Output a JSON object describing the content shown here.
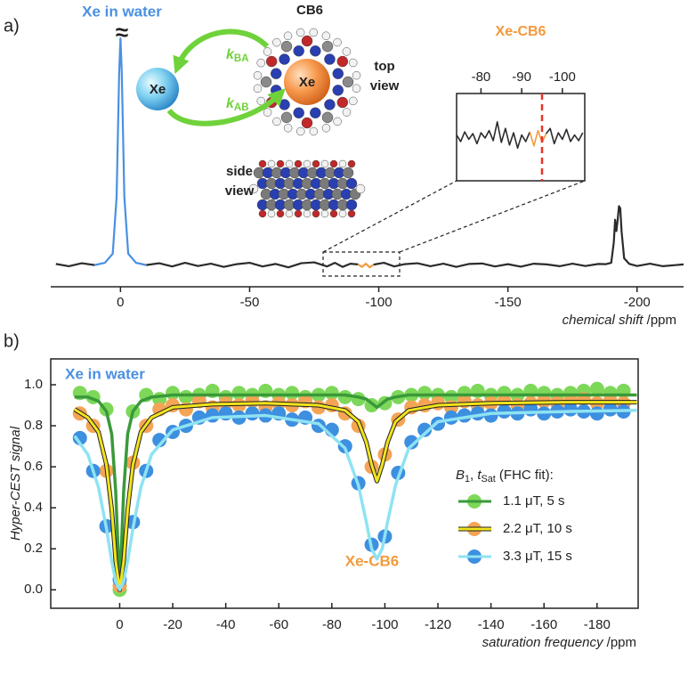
{
  "panel_labels": [
    "a)",
    "b)"
  ],
  "diagram": {
    "cb6": "CB6",
    "xe_free": "Xe",
    "xe_bound": "Xe",
    "k_ba": [
      {
        "text": "k",
        "style": "italic"
      },
      {
        "text": "BA",
        "style": "sub"
      }
    ],
    "k_ab": [
      {
        "text": "k",
        "style": "italic"
      },
      {
        "text": "AB",
        "style": "sub"
      }
    ],
    "top_view": [
      "top",
      "view"
    ],
    "side_view": [
      "side",
      "view"
    ]
  },
  "chart_data": [
    {
      "type": "line",
      "annotations": [
        "Xe in water"
      ],
      "break_mark": "≈",
      "xlim": [
        27,
        -218
      ],
      "ylim": [
        -0.08,
        1
      ],
      "xticks": [
        0,
        -50,
        -100,
        -150,
        -200
      ],
      "xlabel": [
        {
          "text": "chemical shift",
          "style": "italic"
        },
        {
          "text": " /ppm",
          "style": "normal"
        }
      ],
      "series": [
        {
          "color": "#2b2b2b",
          "x": [
            25,
            20,
            15,
            10
          ],
          "values": [
            0.005,
            -0.005,
            0.008,
            0
          ]
        },
        {
          "color": "#4a90e2",
          "x": [
            10,
            6,
            3,
            1.5,
            0.5,
            0,
            -0.5,
            -1.5,
            -3,
            -6,
            -10
          ],
          "values": [
            0,
            0.01,
            0.05,
            0.3,
            0.85,
            1,
            0.85,
            0.3,
            0.05,
            0.01,
            0
          ]
        },
        {
          "color": "#2b2b2b",
          "x": [
            -10,
            -15,
            -20,
            -25,
            -30,
            -35,
            -40,
            -45,
            -50,
            -55,
            -60,
            -65,
            -70,
            -75,
            -80,
            -83,
            -86,
            -89,
            -92
          ],
          "values": [
            0,
            0.008,
            -0.006,
            0.01,
            -0.004,
            0.006,
            -0.008,
            0.004,
            0.01,
            -0.006,
            0.005,
            -0.01,
            0.008,
            0.012,
            -0.006,
            0.01,
            -0.008,
            0.006,
            0.003
          ]
        },
        {
          "color": "#f39a3c",
          "x": [
            -92,
            -93.5,
            -95,
            -96.5,
            -98
          ],
          "values": [
            0.003,
            -0.008,
            0.006,
            -0.01,
            0.002
          ]
        },
        {
          "color": "#2b2b2b",
          "x": [
            -98,
            -102,
            -106,
            -110,
            -115,
            -120,
            -125,
            -130,
            -135,
            -140,
            -145,
            -150,
            -155,
            -160,
            -165,
            -170,
            -175,
            -180,
            -185,
            -188,
            -190,
            -191,
            -191.5,
            -192,
            -192.5,
            -193,
            -193.5,
            -194,
            -195,
            -197,
            -200,
            -205,
            -210,
            -218
          ],
          "values": [
            0.002,
            0.01,
            -0.006,
            0.004,
            0.008,
            -0.005,
            0.006,
            -0.008,
            0.005,
            0.007,
            -0.006,
            0.004,
            -0.007,
            0.006,
            0.003,
            -0.005,
            0.006,
            -0.004,
            0.005,
            0.004,
            0.01,
            0.1,
            0.2,
            0.15,
            0.2,
            0.26,
            0.25,
            0.15,
            0.03,
            0.005,
            -0.004,
            0.006,
            -0.005,
            0.003
          ]
        }
      ]
    },
    {
      "type": "line",
      "title": "Xe-CB6",
      "xlim": [
        -74,
        -105.5
      ],
      "ylim": [
        -1,
        1
      ],
      "xticks": [
        -80,
        -90,
        -100
      ],
      "marker_x": -95,
      "marker_color": "#e8332a",
      "series": [
        {
          "color": "#2b2b2b",
          "x": [
            -74,
            -75,
            -76,
            -77,
            -78,
            -79,
            -80,
            -81,
            -82,
            -83,
            -84,
            -85,
            -86,
            -87,
            -88,
            -89,
            -90,
            -91,
            -92
          ],
          "values": [
            0.05,
            -0.1,
            0.12,
            -0.05,
            0.08,
            -0.15,
            0.1,
            -0.02,
            0.15,
            -0.08,
            0.35,
            -0.12,
            0.2,
            -0.18,
            0.1,
            -0.25,
            0.05,
            -0.1,
            0.12
          ]
        },
        {
          "color": "#f39a3c",
          "x": [
            -92,
            -93,
            -94,
            -95,
            -96
          ],
          "values": [
            0.12,
            -0.2,
            0.15,
            -0.12,
            0.08
          ]
        },
        {
          "color": "#2b2b2b",
          "x": [
            -96,
            -97,
            -98,
            -99,
            -100,
            -101,
            -102,
            -103,
            -104,
            -105
          ],
          "values": [
            0.08,
            0.2,
            -0.15,
            0.1,
            -0.05,
            0.18,
            -0.1,
            0.05,
            -0.08,
            0.1
          ]
        }
      ]
    },
    {
      "type": "scatter",
      "annotations": [
        "Xe in water",
        "Xe-CB6"
      ],
      "xlim": [
        26,
        -195.5
      ],
      "ylim": [
        -0.09,
        1.126
      ],
      "xticks": [
        0,
        -20,
        -40,
        -60,
        -80,
        -100,
        -120,
        -140,
        -160,
        -180
      ],
      "yticks": [
        {
          "value": 0,
          "label": "0.0"
        },
        0.2,
        0.4,
        0.6,
        0.8,
        {
          "value": 1,
          "label": "1.0"
        }
      ],
      "xlabel": [
        {
          "text": "saturation frequency",
          "style": "italic"
        },
        {
          "text": " /ppm",
          "style": "normal"
        }
      ],
      "ylabel": [
        {
          "text": "Hyper-CEST signal",
          "style": "italic"
        }
      ],
      "legend": "right",
      "legend_title": [
        {
          "text": "B",
          "style": "italic"
        },
        {
          "text": "1",
          "style": "sub"
        },
        {
          "text": ", ",
          "style": "normal"
        },
        {
          "text": "t",
          "style": "italic"
        },
        {
          "text": "Sat",
          "style": "sub"
        },
        {
          "text": " (FHC fit):",
          "style": "normal"
        }
      ],
      "x": [
        15,
        10,
        5,
        0,
        -5,
        -10,
        -15,
        -20,
        -25,
        -30,
        -35,
        -40,
        -45,
        -50,
        -55,
        -60,
        -65,
        -70,
        -75,
        -80,
        -85,
        -90,
        -95,
        -100,
        -105,
        -110,
        -115,
        -120,
        -125,
        -130,
        -135,
        -140,
        -145,
        -150,
        -155,
        -160,
        -165,
        -170,
        -175,
        -180,
        -185,
        -190
      ],
      "fit_x": [
        17,
        12,
        8,
        5,
        3,
        1.5,
        0,
        -1.5,
        -3,
        -5,
        -8,
        -12,
        -20,
        -35,
        -55,
        -75,
        -85,
        -90,
        -93,
        -95,
        -97,
        -99,
        -101,
        -104,
        -109,
        -120,
        -140,
        -170,
        -195
      ],
      "series": [
        {
          "name": "1.1 μT, 5 s",
          "color": "#7dd85a",
          "line_color": "#3a9a3a",
          "values": [
            0.96,
            0.94,
            0.88,
            0,
            0.87,
            0.95,
            0.93,
            0.96,
            0.94,
            0.95,
            0.97,
            0.94,
            0.96,
            0.95,
            0.97,
            0.95,
            0.96,
            0.94,
            0.95,
            0.96,
            0.94,
            0.93,
            0.9,
            0.91,
            0.94,
            0.95,
            0.96,
            0.95,
            0.94,
            0.96,
            0.97,
            0.95,
            0.96,
            0.95,
            0.97,
            0.96,
            0.95,
            0.96,
            0.97,
            0.98,
            0.96,
            0.97
          ],
          "fit": [
            0.94,
            0.94,
            0.92,
            0.87,
            0.76,
            0.48,
            0,
            0.48,
            0.76,
            0.87,
            0.92,
            0.94,
            0.95,
            0.95,
            0.95,
            0.95,
            0.95,
            0.94,
            0.93,
            0.91,
            0.89,
            0.91,
            0.93,
            0.94,
            0.95,
            0.95,
            0.95,
            0.95,
            0.95
          ]
        },
        {
          "name": "2.2 μT, 10 s",
          "color": "#f3a455",
          "line_color": "#f2e41c",
          "outline": "#222222",
          "values": [
            0.86,
            0.8,
            0.58,
            0.02,
            0.62,
            0.8,
            0.88,
            0.9,
            0.88,
            0.92,
            0.89,
            0.91,
            0.9,
            0.92,
            0.89,
            0.91,
            0.9,
            0.92,
            0.89,
            0.9,
            0.86,
            0.8,
            0.6,
            0.66,
            0.83,
            0.89,
            0.9,
            0.91,
            0.89,
            0.92,
            0.9,
            0.91,
            0.92,
            0.9,
            0.91,
            0.92,
            0.91,
            0.92,
            0.93,
            0.91,
            0.92,
            0.91
          ],
          "fit": [
            0.88,
            0.84,
            0.77,
            0.61,
            0.39,
            0.14,
            0,
            0.14,
            0.39,
            0.61,
            0.77,
            0.84,
            0.89,
            0.905,
            0.91,
            0.9,
            0.875,
            0.82,
            0.72,
            0.61,
            0.53,
            0.61,
            0.72,
            0.82,
            0.875,
            0.9,
            0.91,
            0.915,
            0.915
          ]
        },
        {
          "name": "3.3 μT, 15 s",
          "color": "#3d8fe0",
          "line_color": "#8ee3f2",
          "values": [
            0.74,
            0.58,
            0.31,
            0.05,
            0.33,
            0.58,
            0.73,
            0.77,
            0.8,
            0.84,
            0.85,
            0.86,
            0.84,
            0.86,
            0.85,
            0.86,
            0.83,
            0.84,
            0.8,
            0.78,
            0.7,
            0.52,
            0.22,
            0.26,
            0.57,
            0.72,
            0.78,
            0.81,
            0.84,
            0.85,
            0.86,
            0.85,
            0.87,
            0.86,
            0.88,
            0.86,
            0.87,
            0.88,
            0.87,
            0.86,
            0.88,
            0.87
          ],
          "fit": [
            0.75,
            0.66,
            0.5,
            0.3,
            0.14,
            0.04,
            0,
            0.04,
            0.14,
            0.3,
            0.5,
            0.66,
            0.78,
            0.84,
            0.85,
            0.81,
            0.69,
            0.51,
            0.33,
            0.2,
            0.15,
            0.2,
            0.33,
            0.51,
            0.69,
            0.82,
            0.86,
            0.87,
            0.875
          ]
        }
      ]
    }
  ]
}
